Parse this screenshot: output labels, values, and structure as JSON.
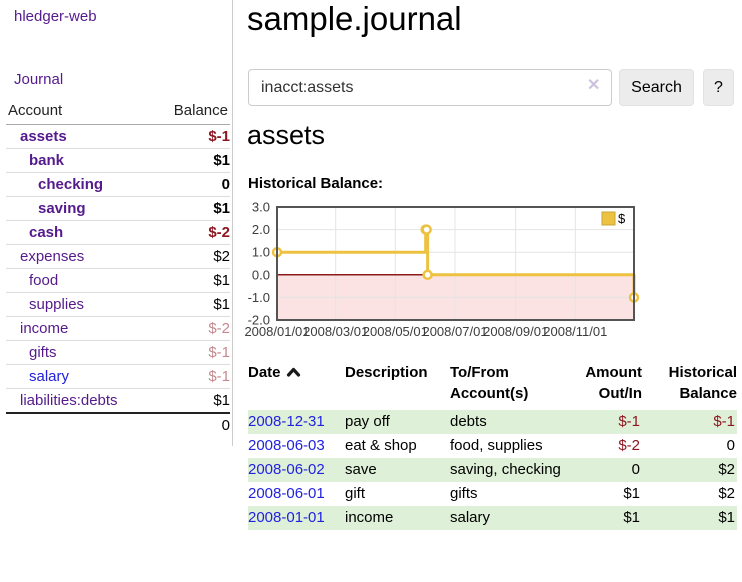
{
  "app": {
    "brand": "hledger-web",
    "nav": {
      "journal": "Journal"
    }
  },
  "sidebar": {
    "columns": {
      "account": "Account",
      "balance": "Balance"
    },
    "rows": [
      {
        "name": "assets",
        "balance": "$-1"
      },
      {
        "name": "bank",
        "balance": "$1"
      },
      {
        "name": "checking",
        "balance": "0"
      },
      {
        "name": "saving",
        "balance": "$1"
      },
      {
        "name": "cash",
        "balance": "$-2"
      },
      {
        "name": "expenses",
        "balance": "$2"
      },
      {
        "name": "food",
        "balance": "$1"
      },
      {
        "name": "supplies",
        "balance": "$1"
      },
      {
        "name": "income",
        "balance": "$-2"
      },
      {
        "name": "gifts",
        "balance": "$-1"
      },
      {
        "name": "salary",
        "balance": "$-1"
      },
      {
        "name": "liabilities:debts",
        "balance": "$1"
      }
    ],
    "total": "0"
  },
  "header": {
    "title": "sample.journal"
  },
  "search": {
    "query": "inacct:assets",
    "clear_glyph": "✕",
    "button_label": "Search",
    "help_label": "?"
  },
  "account_page": {
    "heading": "assets",
    "chart_title": "Historical Balance:"
  },
  "chart_data": {
    "type": "line",
    "title": "Historical Balance",
    "step": true,
    "series": [
      {
        "name": "$",
        "color": "#edc240",
        "points": [
          [
            "2008-01-01",
            1
          ],
          [
            "2008-06-01",
            2
          ],
          [
            "2008-06-02",
            2
          ],
          [
            "2008-06-03",
            0
          ],
          [
            "2008-12-31",
            -1
          ]
        ]
      }
    ],
    "ylim": [
      -2,
      3
    ],
    "yticks": [
      3.0,
      2.0,
      1.0,
      0.0,
      -1.0,
      -2.0
    ],
    "xticks": [
      "2008/01/01",
      "2008/03/01",
      "2008/05/01",
      "2008/07/01",
      "2008/09/01",
      "2008/11/01"
    ],
    "x_range": [
      "2008-01-01",
      "2008-12-31"
    ],
    "grid": true,
    "legend_position": "top-right",
    "negative_fill": "#fbe3e4",
    "zero_line_color": "#8b1a1a",
    "border_color": "#545454"
  },
  "register": {
    "columns": {
      "date": "Date",
      "description": "Description",
      "accounts": "To/From Account(s)",
      "amount": "Amount Out/In",
      "balance": "Historical Balance"
    },
    "rows": [
      {
        "date": "2008-12-31",
        "description": "pay off",
        "accounts": "debts",
        "amount": "$-1",
        "balance": "$-1"
      },
      {
        "date": "2008-06-03",
        "description": "eat & shop",
        "accounts": "food, supplies",
        "amount": "$-2",
        "balance": "0"
      },
      {
        "date": "2008-06-02",
        "description": "save",
        "accounts": "saving, checking",
        "amount": "0",
        "balance": "$2"
      },
      {
        "date": "2008-06-01",
        "description": "gift",
        "accounts": "gifts",
        "amount": "$1",
        "balance": "$2"
      },
      {
        "date": "2008-01-01",
        "description": "income",
        "accounts": "salary",
        "amount": "$1",
        "balance": "$1"
      }
    ]
  },
  "icons": {
    "sort_asc": "chevron-up",
    "clear": "x-mark"
  },
  "colors": {
    "link_purple": "#551a8b",
    "link_blue": "#2222dd",
    "negative_strong": "#8e1620",
    "negative_muted": "#c4898f",
    "row_green": "#dff0d8",
    "series_gold": "#edc240"
  }
}
